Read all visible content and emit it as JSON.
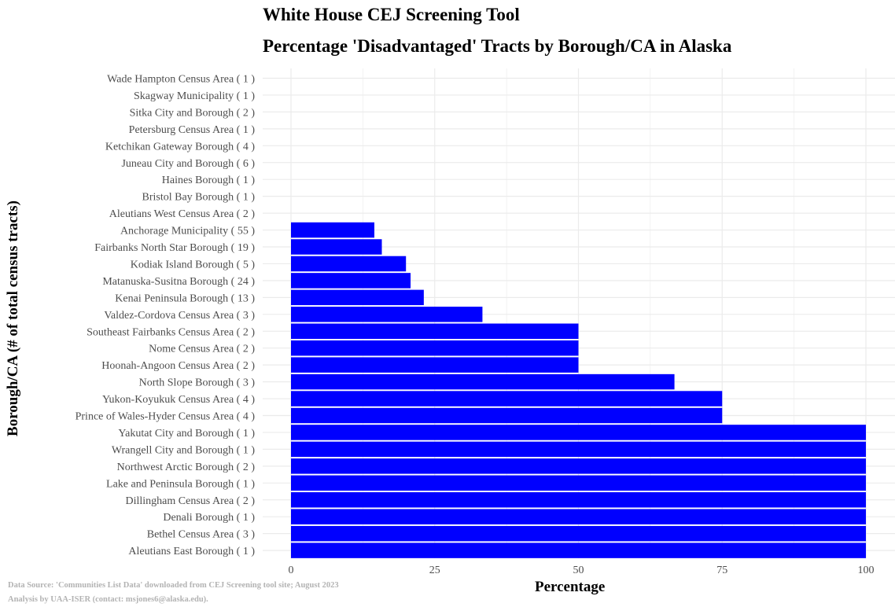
{
  "title": "White House CEJ Screening Tool",
  "subtitle": "Percentage 'Disadvantaged' Tracts by Borough/CA in Alaska",
  "footnote": {
    "line1": "Data Source: 'Communities List Data' downloaded from CEJ Screening tool site; August 2023",
    "line2": "Analysis by UAA-ISER (contact: msjones6@alaska.edu)."
  },
  "colors": {
    "bar": "#0000ff",
    "grid": "#ebebeb",
    "tick_text": "#4d4d4d"
  },
  "chart_data": {
    "type": "bar",
    "orientation": "horizontal",
    "title": "White House CEJ Screening Tool",
    "subtitle": "Percentage 'Disadvantaged' Tracts by Borough/CA in Alaska",
    "xlabel": "Percentage",
    "ylabel": "Borough/CA (# of total census tracts)",
    "xlim": [
      0,
      100
    ],
    "xticks": [
      0,
      25,
      50,
      75,
      100
    ],
    "grid": true,
    "categories": [
      "Wade Hampton Census Area ( 1 )",
      "Skagway Municipality ( 1 )",
      "Sitka City and Borough ( 2 )",
      "Petersburg Census Area ( 1 )",
      "Ketchikan Gateway Borough ( 4 )",
      "Juneau City and Borough ( 6 )",
      "Haines Borough ( 1 )",
      "Bristol Bay Borough ( 1 )",
      "Aleutians West Census Area ( 2 )",
      "Anchorage Municipality ( 55 )",
      "Fairbanks North Star Borough ( 19 )",
      "Kodiak Island Borough ( 5 )",
      "Matanuska-Susitna Borough ( 24 )",
      "Kenai Peninsula Borough ( 13 )",
      "Valdez-Cordova Census Area ( 3 )",
      "Southeast Fairbanks Census Area ( 2 )",
      "Nome Census Area ( 2 )",
      "Hoonah-Angoon Census Area ( 2 )",
      "North Slope Borough ( 3 )",
      "Yukon-Koyukuk Census Area ( 4 )",
      "Prince of Wales-Hyder Census Area ( 4 )",
      "Yakutat City and Borough ( 1 )",
      "Wrangell City and Borough ( 1 )",
      "Northwest Arctic Borough ( 2 )",
      "Lake and Peninsula Borough ( 1 )",
      "Dillingham Census Area ( 2 )",
      "Denali Borough ( 1 )",
      "Bethel Census Area ( 3 )",
      "Aleutians East Borough ( 1 )"
    ],
    "values": [
      0,
      0,
      0,
      0,
      0,
      0,
      0,
      0,
      0,
      14.5,
      15.8,
      20,
      20.8,
      23.1,
      33.3,
      50,
      50,
      50,
      66.7,
      75,
      75,
      100,
      100,
      100,
      100,
      100,
      100,
      100,
      100
    ]
  }
}
